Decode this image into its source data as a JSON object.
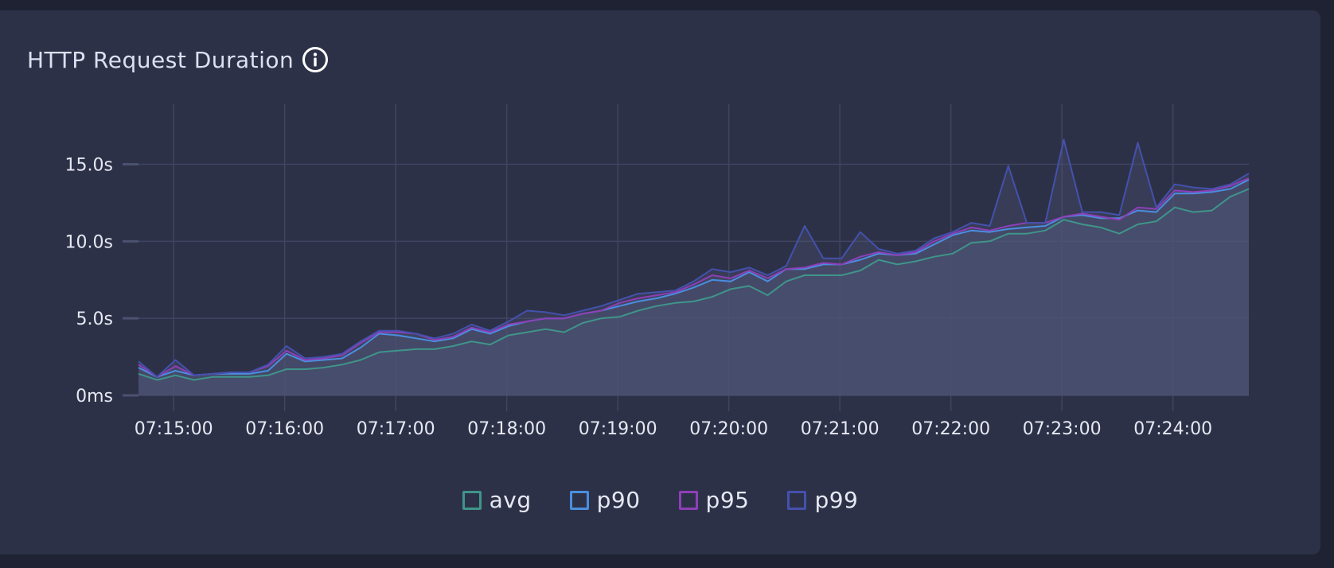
{
  "panel": {
    "title": "HTTP Request Duration"
  },
  "colors": {
    "avg": "#3f958a",
    "p90": "#4a8ee0",
    "p95": "#8e3fb8",
    "p99": "#4451ad",
    "fill": "#4f5577",
    "grid": "#3f4562"
  },
  "chart_data": {
    "type": "area",
    "title": "HTTP Request Duration",
    "xlabel": "",
    "ylabel": "",
    "y_unit": "seconds",
    "ylim": [
      0,
      18.9
    ],
    "yticks": [
      {
        "value": 0,
        "label": "0ms"
      },
      {
        "value": 5,
        "label": "5.0s"
      },
      {
        "value": 10,
        "label": "10.0s"
      },
      {
        "value": 15,
        "label": "15.0s"
      }
    ],
    "xlim": [
      "07:14:41",
      "07:24:41"
    ],
    "xticks": [
      "07:15:00",
      "07:16:00",
      "07:17:00",
      "07:18:00",
      "07:19:00",
      "07:20:00",
      "07:21:00",
      "07:22:00",
      "07:23:00",
      "07:24:00"
    ],
    "grid": true,
    "legend_position": "bottom",
    "x": [
      "07:14:41",
      "07:14:51",
      "07:15:01",
      "07:15:11",
      "07:15:21",
      "07:15:31",
      "07:15:41",
      "07:15:51",
      "07:16:01",
      "07:16:11",
      "07:16:21",
      "07:16:31",
      "07:16:41",
      "07:16:51",
      "07:17:01",
      "07:17:11",
      "07:17:21",
      "07:17:31",
      "07:17:41",
      "07:17:51",
      "07:18:01",
      "07:18:11",
      "07:18:21",
      "07:18:31",
      "07:18:41",
      "07:18:51",
      "07:19:01",
      "07:19:11",
      "07:19:21",
      "07:19:31",
      "07:19:41",
      "07:19:51",
      "07:20:01",
      "07:20:11",
      "07:20:21",
      "07:20:31",
      "07:20:41",
      "07:20:51",
      "07:21:01",
      "07:21:11",
      "07:21:21",
      "07:21:31",
      "07:21:41",
      "07:21:51",
      "07:22:01",
      "07:22:11",
      "07:22:21",
      "07:22:31",
      "07:22:41",
      "07:22:51",
      "07:23:01",
      "07:23:11",
      "07:23:21",
      "07:23:31",
      "07:23:41",
      "07:23:51",
      "07:24:01",
      "07:24:11",
      "07:24:21",
      "07:24:31",
      "07:24:41"
    ],
    "series": [
      {
        "name": "avg",
        "values": [
          1.4,
          1.0,
          1.3,
          1.0,
          1.2,
          1.2,
          1.2,
          1.3,
          1.7,
          1.7,
          1.8,
          2.0,
          2.3,
          2.8,
          2.9,
          3.0,
          3.0,
          3.2,
          3.5,
          3.3,
          3.9,
          4.1,
          4.3,
          4.1,
          4.7,
          5.0,
          5.1,
          5.5,
          5.8,
          6.0,
          6.1,
          6.4,
          6.9,
          7.1,
          6.5,
          7.4,
          7.8,
          7.8,
          7.8,
          8.1,
          8.8,
          8.5,
          8.7,
          9.0,
          9.2,
          9.9,
          10.0,
          10.5,
          10.5,
          10.7,
          11.4,
          11.1,
          10.9,
          10.5,
          11.1,
          11.3,
          12.2,
          11.9,
          12.0,
          12.9,
          13.4
        ]
      },
      {
        "name": "p90",
        "values": [
          1.8,
          1.2,
          1.6,
          1.3,
          1.4,
          1.4,
          1.4,
          1.6,
          2.7,
          2.2,
          2.3,
          2.4,
          3.1,
          4.0,
          3.9,
          3.7,
          3.5,
          3.7,
          4.3,
          4.0,
          4.5,
          4.8,
          5.0,
          5.0,
          5.3,
          5.5,
          5.8,
          6.1,
          6.3,
          6.6,
          7.0,
          7.5,
          7.4,
          8.0,
          7.4,
          8.2,
          8.2,
          8.5,
          8.5,
          8.8,
          9.2,
          9.1,
          9.2,
          9.8,
          10.4,
          10.7,
          10.6,
          10.8,
          10.9,
          11.0,
          11.6,
          11.7,
          11.5,
          11.5,
          12.0,
          11.9,
          13.1,
          13.1,
          13.2,
          13.4,
          14.0
        ]
      },
      {
        "name": "p95",
        "values": [
          2.0,
          1.2,
          1.9,
          1.3,
          1.4,
          1.5,
          1.5,
          1.9,
          2.9,
          2.3,
          2.4,
          2.6,
          3.4,
          4.1,
          4.1,
          4.0,
          3.6,
          3.8,
          4.4,
          4.1,
          4.6,
          4.8,
          5.0,
          5.0,
          5.3,
          5.5,
          6.0,
          6.3,
          6.5,
          6.7,
          7.2,
          7.8,
          7.6,
          8.1,
          7.6,
          8.2,
          8.3,
          8.6,
          8.5,
          9.0,
          9.3,
          9.1,
          9.3,
          10.0,
          10.5,
          10.9,
          10.7,
          11.0,
          11.2,
          11.2,
          11.6,
          11.8,
          11.6,
          11.4,
          12.2,
          12.1,
          13.3,
          13.2,
          13.3,
          13.6,
          14.1
        ]
      },
      {
        "name": "p99",
        "values": [
          2.2,
          1.2,
          2.3,
          1.3,
          1.4,
          1.5,
          1.5,
          2.0,
          3.2,
          2.4,
          2.5,
          2.7,
          3.5,
          4.2,
          4.2,
          4.0,
          3.7,
          4.0,
          4.6,
          4.2,
          4.8,
          5.5,
          5.4,
          5.2,
          5.5,
          5.8,
          6.2,
          6.6,
          6.7,
          6.8,
          7.4,
          8.2,
          8.0,
          8.3,
          7.8,
          8.4,
          11.0,
          8.9,
          8.9,
          10.6,
          9.5,
          9.2,
          9.4,
          10.2,
          10.6,
          11.2,
          11.0,
          14.9,
          11.2,
          11.2,
          16.6,
          11.9,
          11.9,
          11.7,
          16.4,
          12.2,
          13.7,
          13.5,
          13.4,
          13.7,
          14.4
        ]
      }
    ]
  }
}
